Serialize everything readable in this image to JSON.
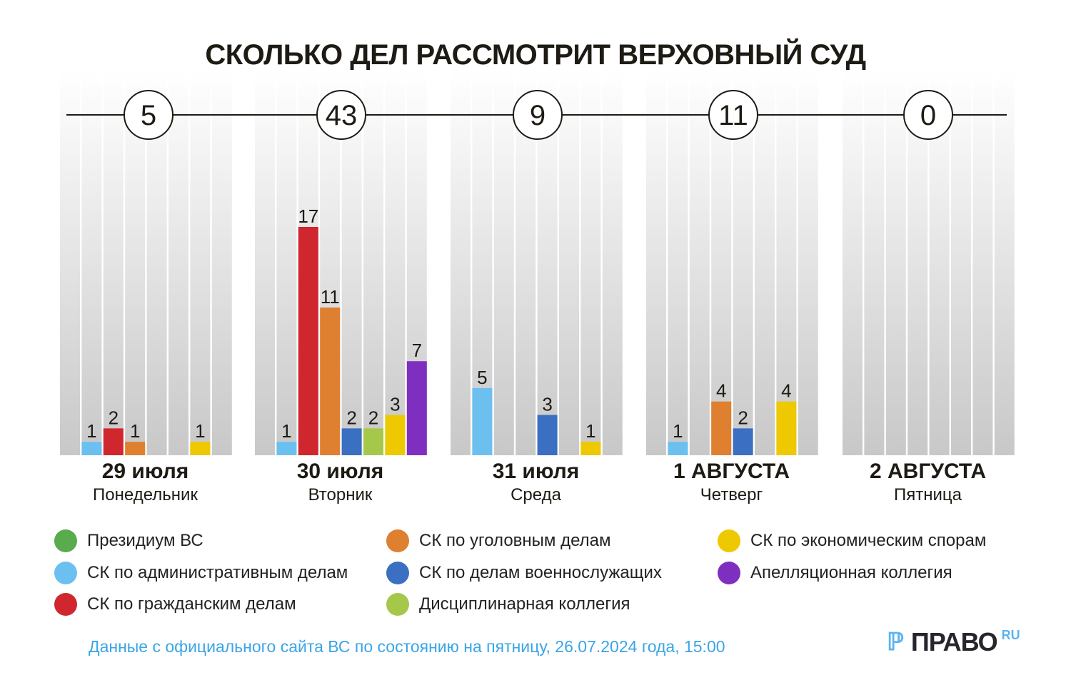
{
  "chart_data": {
    "type": "bar",
    "title": "СКОЛЬКО ДЕЛ РАССМОТРИТ ВЕРХОВНЫЙ СУД",
    "categories": [
      {
        "date": "29 июля",
        "weekday": "Понедельник",
        "total": 5
      },
      {
        "date": "30 июля",
        "weekday": "Вторник",
        "total": 43
      },
      {
        "date": "31 июля",
        "weekday": "Среда",
        "total": 9
      },
      {
        "date": "1 АВГУСТА",
        "weekday": "Четверг",
        "total": 11
      },
      {
        "date": "2 АВГУСТА",
        "weekday": "Пятница",
        "total": 0
      }
    ],
    "series": [
      {
        "name": "Президиум ВС",
        "color": "#5aab4e",
        "values": [
          0,
          0,
          0,
          0,
          0
        ]
      },
      {
        "name": "СК по административным делам",
        "color": "#6cc0f0",
        "values": [
          1,
          1,
          5,
          1,
          0
        ]
      },
      {
        "name": "СК по гражданским делам",
        "color": "#d0262e",
        "values": [
          2,
          17,
          0,
          0,
          0
        ]
      },
      {
        "name": "СК по уголовным делам",
        "color": "#de8030",
        "values": [
          1,
          11,
          0,
          4,
          0
        ]
      },
      {
        "name": "СК по делам военнослужащих",
        "color": "#3a6fc2",
        "values": [
          0,
          2,
          3,
          2,
          0
        ]
      },
      {
        "name": "Дисциплинарная коллегия",
        "color": "#a6c84a",
        "values": [
          0,
          2,
          0,
          0,
          0
        ]
      },
      {
        "name": "СК по экономическим спорам",
        "color": "#eec800",
        "values": [
          1,
          3,
          1,
          4,
          0
        ]
      },
      {
        "name": "Апелляционная коллегия",
        "color": "#7f2fc0",
        "values": [
          0,
          7,
          0,
          0,
          0
        ]
      }
    ],
    "ylim": [
      0,
      17
    ]
  },
  "footer": {
    "source": "Данные с официального сайта ВС по состоянию на пятницу, 26.07.2024 года, 15:00",
    "logo_text": "ПРАВО",
    "logo_suffix": "RU"
  }
}
